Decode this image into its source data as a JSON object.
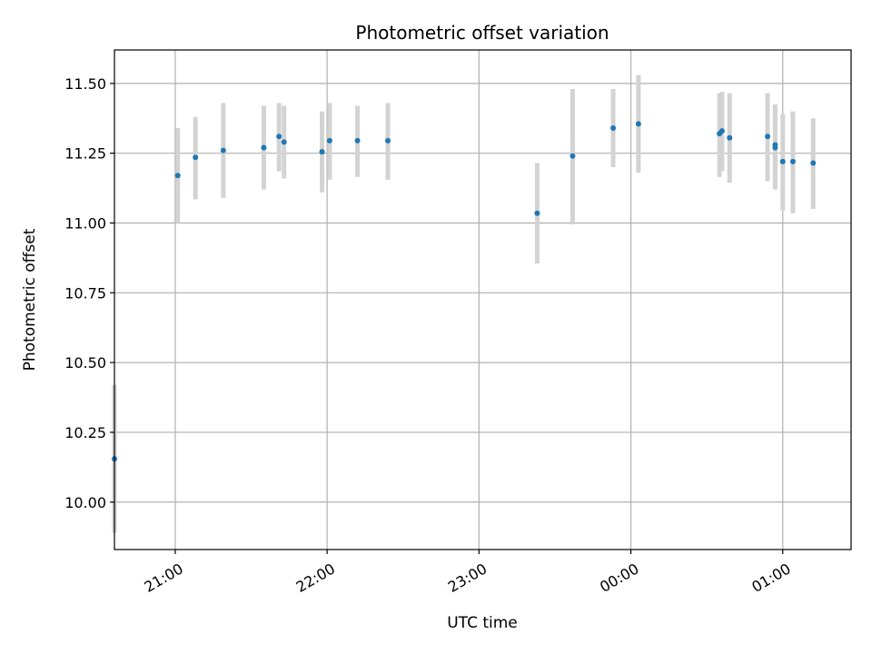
{
  "chart_data": {
    "type": "scatter",
    "title": "Photometric offset variation",
    "xlabel": "UTC time",
    "ylabel": "Photometric offset",
    "xlim": [
      "20:36",
      "01:27"
    ],
    "ylim": [
      9.83,
      11.62
    ],
    "x_ticks": [
      "21:00",
      "22:00",
      "23:00",
      "00:00",
      "01:00"
    ],
    "y_ticks": [
      "10.00",
      "10.25",
      "10.50",
      "10.75",
      "11.00",
      "11.25",
      "11.50"
    ],
    "grid": true,
    "colors": {
      "point": "#1f77b4",
      "errorbar": "#d3d3d3",
      "grid": "#b0b0b0"
    },
    "points": [
      {
        "x": "20:36",
        "y": 10.155,
        "lo": 9.89,
        "hi": 10.42
      },
      {
        "x": "21:01",
        "y": 11.17,
        "lo": 11.0,
        "hi": 11.34
      },
      {
        "x": "21:08",
        "y": 11.235,
        "lo": 11.085,
        "hi": 11.38
      },
      {
        "x": "21:19",
        "y": 11.26,
        "lo": 11.09,
        "hi": 11.43
      },
      {
        "x": "21:35",
        "y": 11.27,
        "lo": 11.12,
        "hi": 11.42
      },
      {
        "x": "21:41",
        "y": 11.31,
        "lo": 11.185,
        "hi": 11.43
      },
      {
        "x": "21:43",
        "y": 11.29,
        "lo": 11.16,
        "hi": 11.42
      },
      {
        "x": "21:58",
        "y": 11.255,
        "lo": 11.11,
        "hi": 11.4
      },
      {
        "x": "22:01",
        "y": 11.295,
        "lo": 11.155,
        "hi": 11.43
      },
      {
        "x": "22:12",
        "y": 11.295,
        "lo": 11.165,
        "hi": 11.42
      },
      {
        "x": "22:24",
        "y": 11.295,
        "lo": 11.155,
        "hi": 11.43
      },
      {
        "x": "23:23",
        "y": 11.035,
        "lo": 10.855,
        "hi": 11.215
      },
      {
        "x": "23:37",
        "y": 11.24,
        "lo": 10.995,
        "hi": 11.48
      },
      {
        "x": "23:53",
        "y": 11.34,
        "lo": 11.2,
        "hi": 11.48
      },
      {
        "x": "00:03",
        "y": 11.355,
        "lo": 11.18,
        "hi": 11.53
      },
      {
        "x": "00:35",
        "y": 11.32,
        "lo": 11.165,
        "hi": 11.465
      },
      {
        "x": "00:36",
        "y": 11.33,
        "lo": 11.185,
        "hi": 11.47
      },
      {
        "x": "00:39",
        "y": 11.305,
        "lo": 11.145,
        "hi": 11.465
      },
      {
        "x": "00:54",
        "y": 11.31,
        "lo": 11.15,
        "hi": 11.465
      },
      {
        "x": "00:57",
        "y": 11.28,
        "lo": 11.12,
        "hi": 11.425
      },
      {
        "x": "00:57",
        "y": 11.27,
        "lo": 11.13,
        "hi": 11.41
      },
      {
        "x": "01:00",
        "y": 11.22,
        "lo": 11.045,
        "hi": 11.39
      },
      {
        "x": "01:04",
        "y": 11.22,
        "lo": 11.035,
        "hi": 11.4
      },
      {
        "x": "01:12",
        "y": 11.215,
        "lo": 11.05,
        "hi": 11.375
      }
    ]
  }
}
